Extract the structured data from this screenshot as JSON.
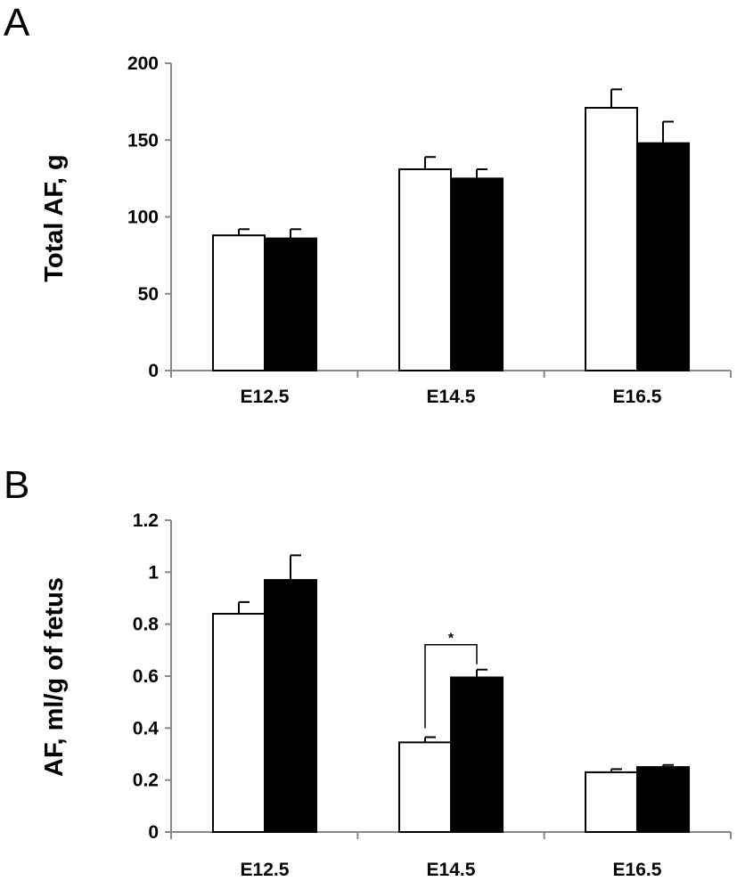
{
  "chart_data": [
    {
      "panel": "A",
      "type": "bar",
      "ylabel": "Total AF, g",
      "xlabel": "",
      "ylim": [
        0,
        200
      ],
      "yticks": [
        0,
        50,
        100,
        150,
        200
      ],
      "ytick_labels": [
        "0",
        "50",
        "100",
        "150",
        "200"
      ],
      "categories": [
        "E12.5",
        "E14.5",
        "E16.5"
      ],
      "series": [
        {
          "fill": "#ffffff",
          "values": [
            88,
            131,
            171
          ],
          "errors": [
            4,
            8,
            12
          ]
        },
        {
          "fill": "#000000",
          "values": [
            86,
            125,
            148
          ],
          "errors": [
            6,
            6,
            14
          ]
        }
      ],
      "grid": false,
      "legend": "none"
    },
    {
      "panel": "B",
      "type": "bar",
      "ylabel": "AF, ml/g of fetus",
      "xlabel": "",
      "ylim": [
        0,
        1.2
      ],
      "yticks": [
        0,
        0.2,
        0.4,
        0.6,
        0.8,
        1,
        1.2
      ],
      "ytick_labels": [
        "0",
        "0.2",
        "0.4",
        "0.6",
        "0.8",
        "1",
        "1.2"
      ],
      "categories": [
        "E12.5",
        "E14.5",
        "E16.5"
      ],
      "series": [
        {
          "fill": "#ffffff",
          "values": [
            0.84,
            0.345,
            0.23
          ],
          "errors": [
            0.045,
            0.02,
            0.012
          ]
        },
        {
          "fill": "#000000",
          "values": [
            0.97,
            0.595,
            0.25
          ],
          "errors": [
            0.095,
            0.03,
            0.008
          ]
        }
      ],
      "annotations": [
        {
          "text": "*",
          "category": "E14.5",
          "between": "series"
        }
      ],
      "grid": false,
      "legend": "none"
    }
  ]
}
